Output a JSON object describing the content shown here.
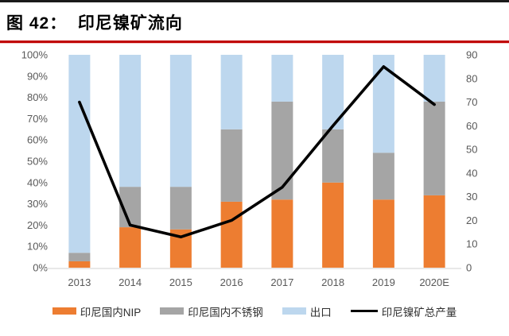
{
  "header": {
    "title": "图 42：  印尼镍矿流向"
  },
  "accent_colors": {
    "top_rule": "#1a1a1a",
    "title_underline": "#c00000"
  },
  "chart_data": {
    "type": "bar",
    "subtype": "stacked-100-percent-bars-with-line-overlay",
    "title": "印尼镍矿流向",
    "categories": [
      "2013",
      "2014",
      "2015",
      "2016",
      "2017",
      "2018",
      "2019",
      "2020E"
    ],
    "series": [
      {
        "name": "印尼国内NIP",
        "type": "bar",
        "axis": "left",
        "color": "#ED7D31",
        "values": [
          3,
          19,
          18,
          31,
          32,
          40,
          32,
          34
        ]
      },
      {
        "name": "印尼国内不锈钢",
        "type": "bar",
        "axis": "left",
        "color": "#A5A5A5",
        "values": [
          4,
          19,
          20,
          34,
          46,
          25,
          22,
          44
        ]
      },
      {
        "name": "出口",
        "type": "bar",
        "axis": "left",
        "color": "#BDD7EE",
        "values": [
          93,
          62,
          62,
          35,
          22,
          35,
          46,
          22
        ]
      },
      {
        "name": "印尼镍矿总产量",
        "type": "line",
        "axis": "right",
        "color": "#000000",
        "values": [
          70,
          18,
          13,
          20,
          34,
          60,
          85,
          69
        ]
      }
    ],
    "left_axis": {
      "min": 0,
      "max": 100,
      "step": 10,
      "unit": "%",
      "tick_labels": [
        "0%",
        "10%",
        "20%",
        "30%",
        "40%",
        "50%",
        "60%",
        "70%",
        "80%",
        "90%",
        "100%"
      ]
    },
    "right_axis": {
      "min": 0,
      "max": 90,
      "step": 10,
      "unit": "",
      "tick_labels": [
        "0",
        "10",
        "20",
        "30",
        "40",
        "50",
        "60",
        "70",
        "80",
        "90"
      ]
    },
    "legend_position": "bottom",
    "grid": false,
    "tick_color": "#595959",
    "axis_line_color": "#D9D9D9"
  }
}
